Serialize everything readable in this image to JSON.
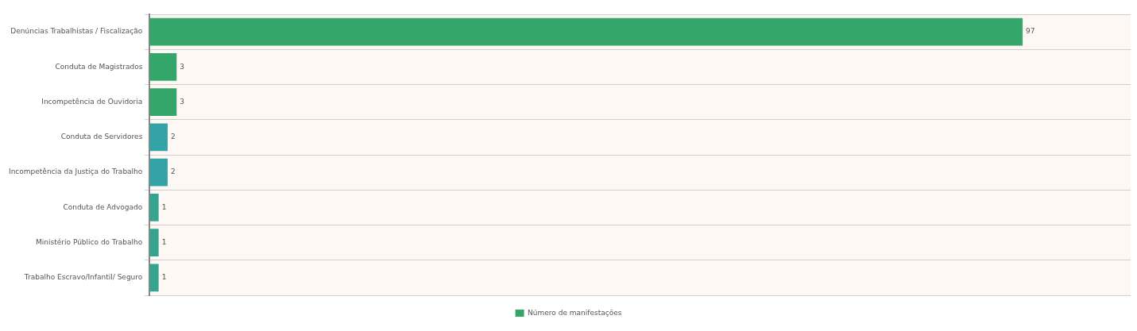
{
  "chart_data": {
    "type": "bar",
    "orientation": "horizontal",
    "categories": [
      "Denúncias Trabalhistas / Fiscalização",
      "Conduta de Magistrados",
      "Incompetência de Ouvidoria",
      "Conduta de Servidores",
      "Incompetência da Justiça do Trabalho",
      "Conduta de Advogado",
      "Ministério Público do Trabalho",
      "Trabalho Escravo/Infantil/ Seguro"
    ],
    "series": [
      {
        "name": "Número de manifestações",
        "color": "#35a66a",
        "colors": [
          "#35a66a",
          "#35a66a",
          "#35a66a",
          "#33a3a8",
          "#33a3a8",
          "#35a38e",
          "#35a38e",
          "#35a38e"
        ],
        "values": [
          97,
          3,
          3,
          2,
          2,
          1,
          1,
          1
        ]
      }
    ],
    "xlim": [
      0,
      109
    ],
    "tick_labels": "y",
    "grid": "y",
    "legend": "bottom",
    "data_labels": true
  }
}
